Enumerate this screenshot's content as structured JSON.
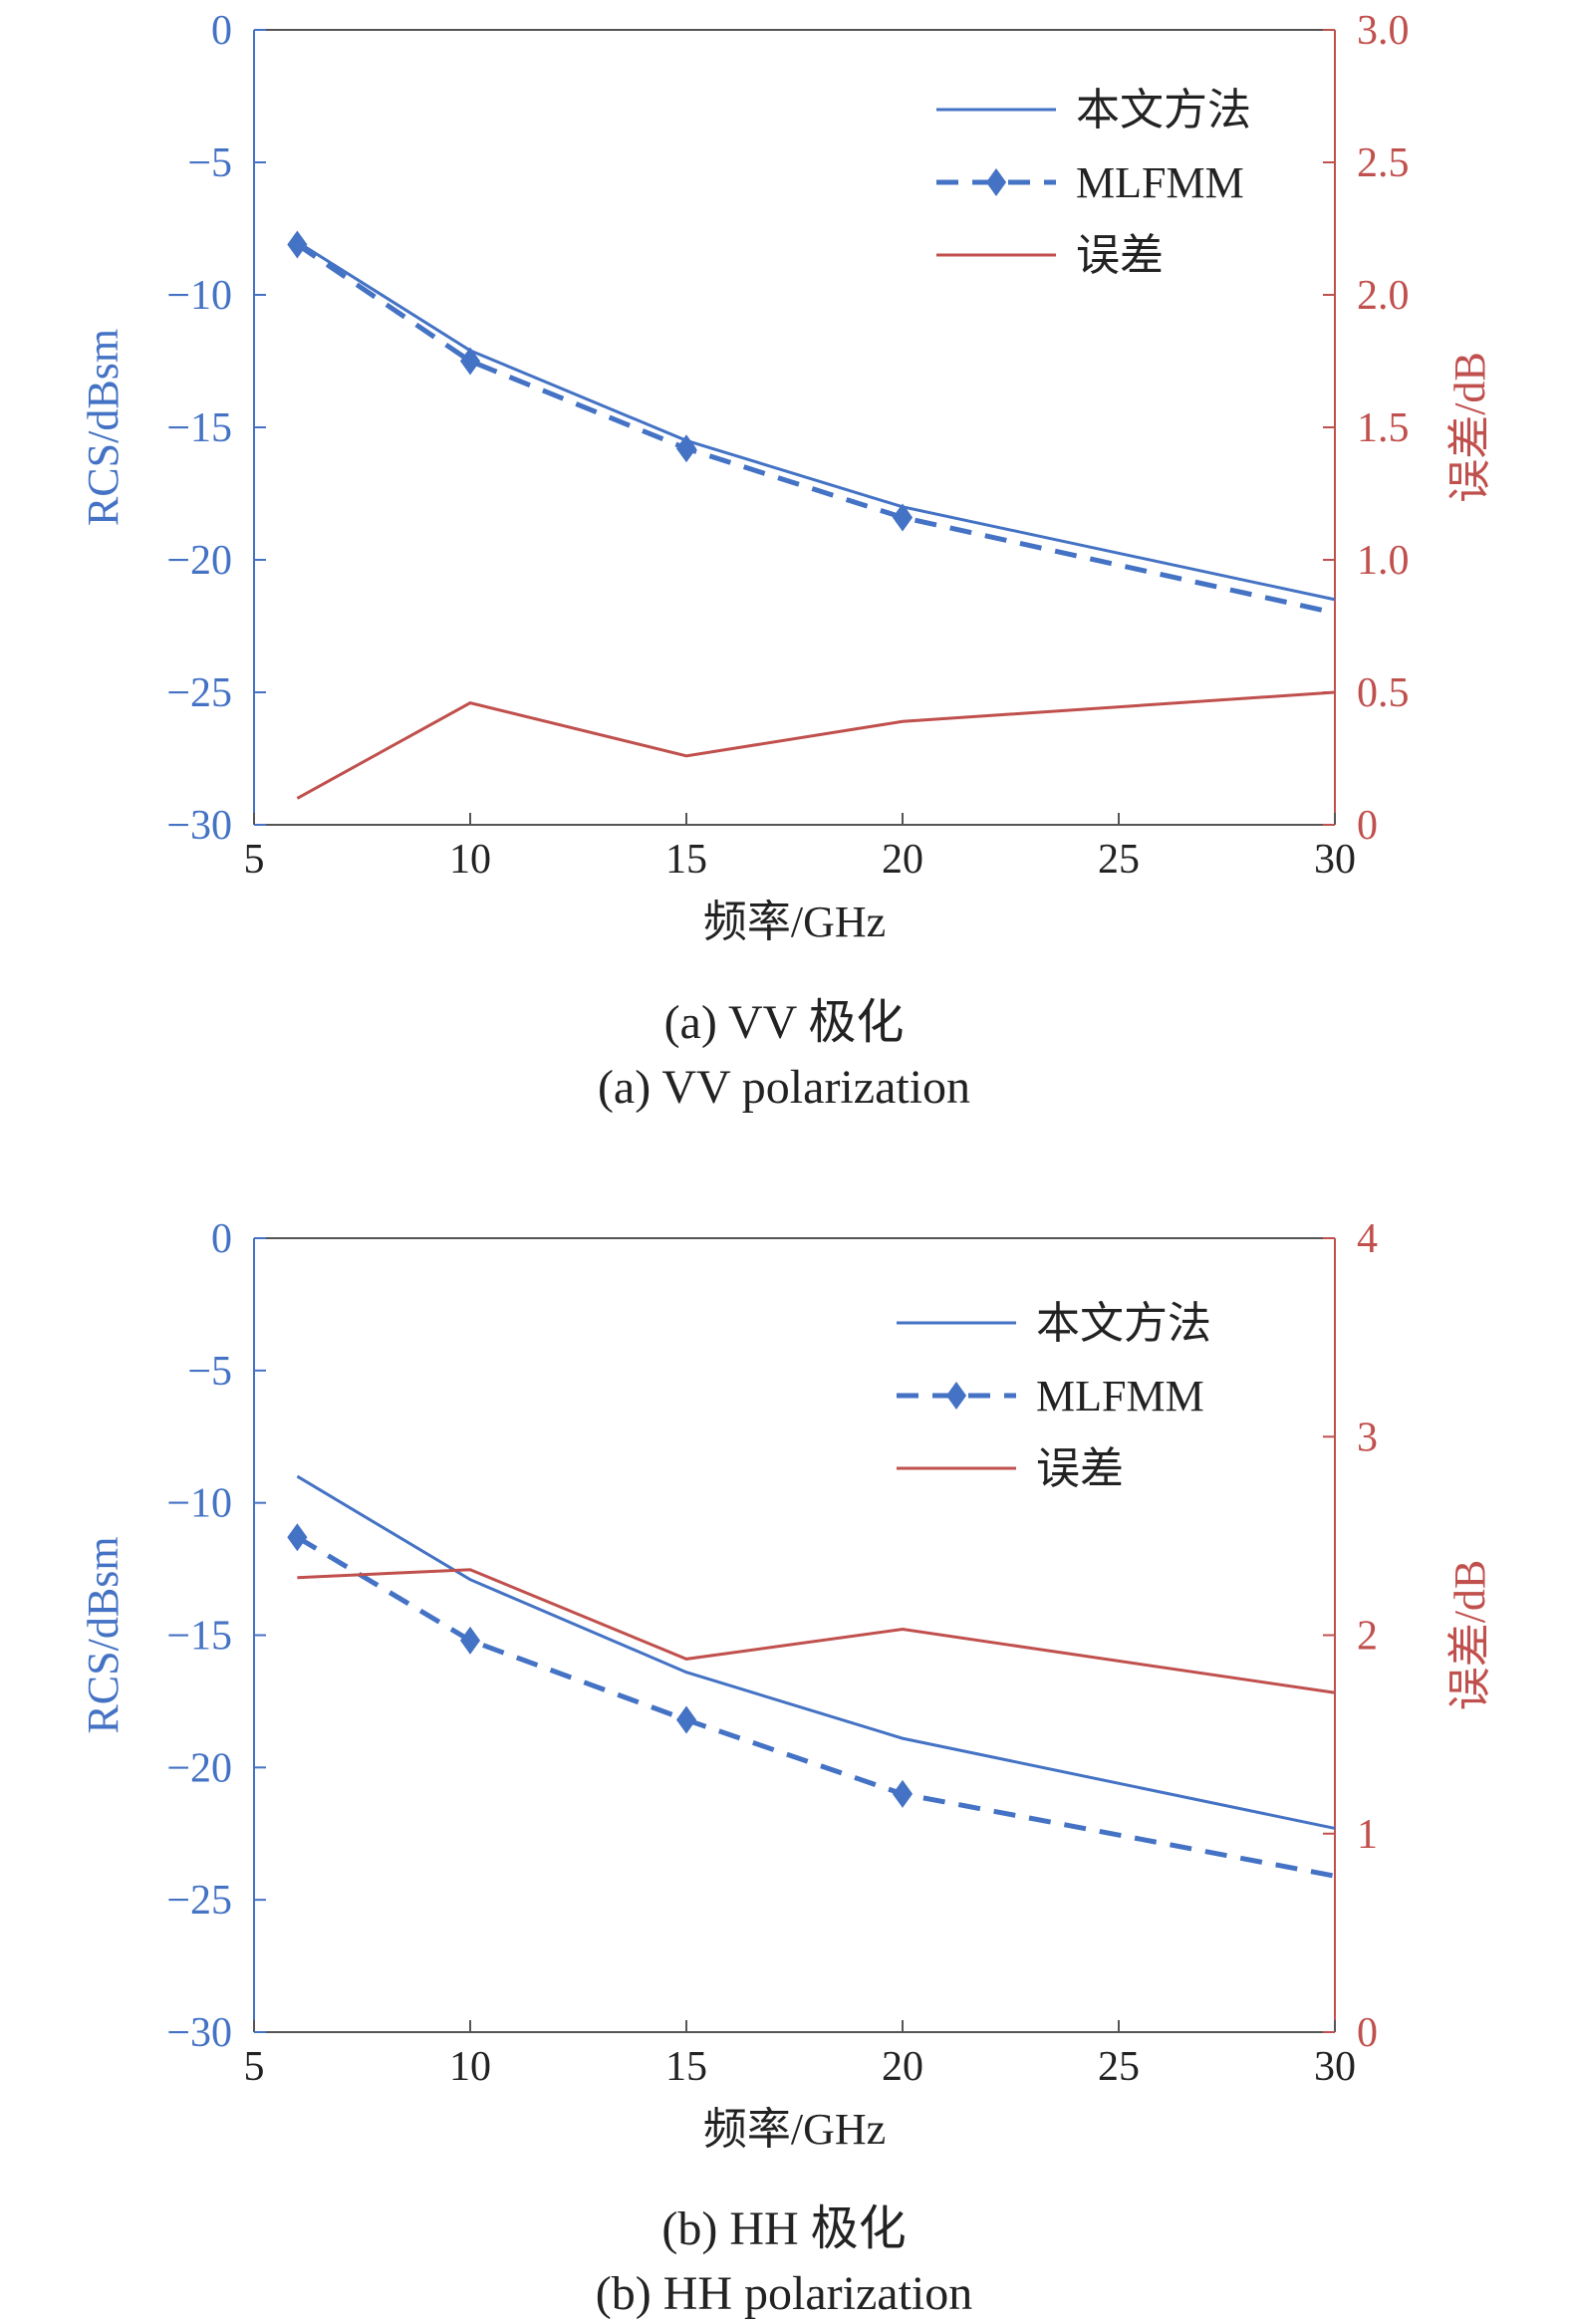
{
  "colors": {
    "blue": "#4472C4",
    "red": "#C0504D",
    "axis_left": "#4472C4",
    "axis_right": "#C0504D",
    "frame": "#555555"
  },
  "chart_data": [
    {
      "type": "line",
      "title": "",
      "caption_cn": "(a) VV 极化",
      "caption_en": "(a) VV polarization",
      "xlabel": "频率/GHz",
      "ylabel": "RCS/dBsm",
      "y2label": "误差/dB",
      "xlim": [
        5,
        30
      ],
      "ylim": [
        -30,
        0
      ],
      "y2lim": [
        0,
        3
      ],
      "xticks": [
        5,
        10,
        15,
        20,
        25,
        30
      ],
      "yticks": [
        0,
        -5,
        -10,
        -15,
        -20,
        -25,
        -30
      ],
      "yticklabels": [
        "0",
        "−5",
        "−10",
        "−15",
        "−20",
        "−25",
        "−30"
      ],
      "y2ticks": [
        0,
        0.5,
        1,
        1.5,
        2,
        2.5,
        3
      ],
      "y2ticklabels": [
        "0",
        "0.5",
        "1.0",
        "1.5",
        "2.0",
        "2.5",
        "3.0"
      ],
      "legend_position": "top-right",
      "series": [
        {
          "name": "本文方法",
          "axis": "left",
          "style": "solid",
          "color": "blue",
          "x": [
            6,
            10,
            15,
            20,
            30
          ],
          "y": [
            -8.0,
            -12.1,
            -15.5,
            -18.0,
            -21.5
          ]
        },
        {
          "name": "MLFMM",
          "axis": "left",
          "style": "dashed-diamond",
          "color": "blue",
          "x": [
            6,
            10,
            15,
            20,
            30
          ],
          "y": [
            -8.1,
            -12.5,
            -15.8,
            -18.4,
            -22.0
          ],
          "markers_x": [
            6,
            10,
            15,
            20
          ]
        },
        {
          "name": "误差",
          "axis": "right",
          "style": "solid",
          "color": "red",
          "x": [
            6,
            10,
            15,
            20,
            30
          ],
          "y": [
            0.1,
            0.46,
            0.26,
            0.39,
            0.5
          ]
        }
      ]
    },
    {
      "type": "line",
      "title": "",
      "caption_cn": "(b) HH 极化",
      "caption_en": "(b) HH polarization",
      "xlabel": "频率/GHz",
      "ylabel": "RCS/dBsm",
      "y2label": "误差/dB",
      "xlim": [
        5,
        30
      ],
      "ylim": [
        -30,
        0
      ],
      "y2lim": [
        0,
        4
      ],
      "xticks": [
        5,
        10,
        15,
        20,
        25,
        30
      ],
      "yticks": [
        0,
        -5,
        -10,
        -15,
        -20,
        -25,
        -30
      ],
      "yticklabels": [
        "0",
        "−5",
        "−10",
        "−15",
        "−20",
        "−25",
        "−30"
      ],
      "y2ticks": [
        0,
        1,
        2,
        3,
        4
      ],
      "y2ticklabels": [
        "0",
        "1",
        "2",
        "3",
        "4"
      ],
      "legend_position": "top-right",
      "series": [
        {
          "name": "本文方法",
          "axis": "left",
          "style": "solid",
          "color": "blue",
          "x": [
            6,
            10,
            15,
            20,
            30
          ],
          "y": [
            -9.0,
            -12.9,
            -16.4,
            -18.9,
            -22.3
          ]
        },
        {
          "name": "MLFMM",
          "axis": "left",
          "style": "dashed-diamond",
          "color": "blue",
          "x": [
            6,
            10,
            15,
            20,
            30
          ],
          "y": [
            -11.3,
            -15.2,
            -18.2,
            -21.0,
            -24.1
          ],
          "markers_x": [
            6,
            10,
            15,
            20
          ]
        },
        {
          "name": "误差",
          "axis": "right",
          "style": "solid",
          "color": "red",
          "x": [
            6,
            10,
            15,
            20,
            30
          ],
          "y": [
            2.29,
            2.33,
            1.88,
            2.03,
            1.71
          ]
        }
      ]
    }
  ]
}
